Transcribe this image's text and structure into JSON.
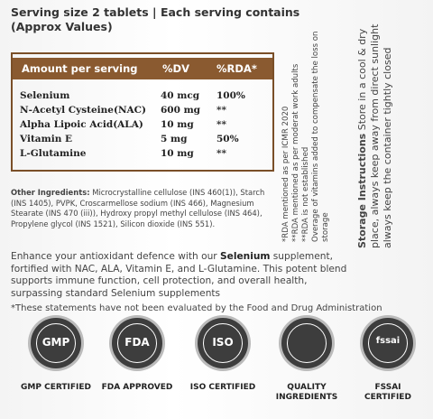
{
  "header": {
    "title": "Serving size 2 tablets | Each serving contains",
    "subtitle": "(Approx Values)"
  },
  "table": {
    "columns": [
      "Amount per serving",
      "%DV",
      "%RDA*"
    ],
    "rows": [
      [
        "Selenium",
        "40 mcg",
        "100%"
      ],
      [
        "N-Acetyl Cysteine(NAC)",
        "600 mg",
        "**"
      ],
      [
        "Alpha Lipoic Acid(ALA)",
        "10 mg",
        "**"
      ],
      [
        "Vitamin E",
        "5 mg",
        "50%"
      ],
      [
        "L-Glutamine",
        "10 mg",
        "**"
      ]
    ]
  },
  "notes": [
    "*RDA mentioned as per ICMR 2020",
    "**RDA mentioned as per moderat work adults",
    "**RDA is not established",
    "Overage of vitamins added to compensate the loss on storage"
  ],
  "storage": {
    "heading": "Storage Instructions",
    "text": "Store in a cool & dry place, always keep away from direct sunlight always keep the container tightly closed"
  },
  "ingredients": {
    "heading": "Other Ingredients:",
    "text": "Microcrystalline cellulose (INS 460(1)), Starch (INS 1405), PVPK, Croscarmellose sodium (INS 466), Magnesium Stearate (INS 470 (iii)), Hydroxy propyl methyl cellulose (INS 464), Propylene glycol (INS 1521), Silicon dioxide (INS 551)."
  },
  "description": [
    "Enhance your antioxidant defence with our ",
    "Selenium",
    " supplement, fortified with NAC, ALA, Vitamin E, and L-Glutamine. This potent blend supports immune function, cell protection, and overall health, surpassing standard Selenium supplements"
  ],
  "disclaimer": "*These statements have not been evaluated by the Food and Drug Administration",
  "badges": [
    {
      "icon": "GMP",
      "label": "GMP CERTIFIED"
    },
    {
      "icon": "FDA",
      "label": "FDA APPROVED"
    },
    {
      "icon": "ISO",
      "label": "ISO CERTIFIED"
    },
    {
      "icon": "",
      "label": "QUALITY INGREDIENTS"
    },
    {
      "icon": "fssai",
      "label": "FSSAI CERTIFIED"
    }
  ]
}
